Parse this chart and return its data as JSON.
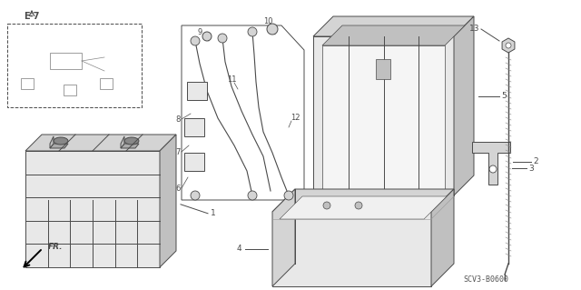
{
  "bg_color": "#ffffff",
  "line_color": "#4a4a4a",
  "fill_light": "#e8e8e8",
  "fill_mid": "#d4d4d4",
  "fill_dark": "#c0c0c0",
  "text_color": "#000000",
  "diagram_code": "SCV3-B0600",
  "ref_label": "E-7",
  "fr_label": "FR."
}
